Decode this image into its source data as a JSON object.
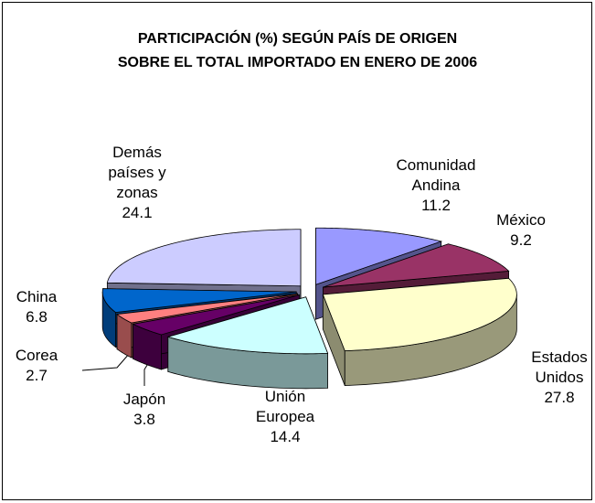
{
  "chart_data": {
    "type": "pie3d",
    "title": [
      "PARTICIPACIÓN (%) SEGÚN PAÍS DE ORIGEN",
      "SOBRE EL TOTAL IMPORTADO EN ENERO DE 2006"
    ],
    "categories": [
      "Comunidad Andina",
      "México",
      "Estados Unidos",
      "Unión Europea",
      "Japón",
      "Corea",
      "China",
      "Demás países y zonas"
    ],
    "values": [
      11.2,
      9.2,
      27.8,
      14.4,
      3.8,
      2.7,
      6.8,
      24.1
    ],
    "colors": [
      "#9999FF",
      "#993366",
      "#FFFFCC",
      "#CCFFFF",
      "#660066",
      "#FF8080",
      "#0066CC",
      "#CCCCFF"
    ]
  }
}
